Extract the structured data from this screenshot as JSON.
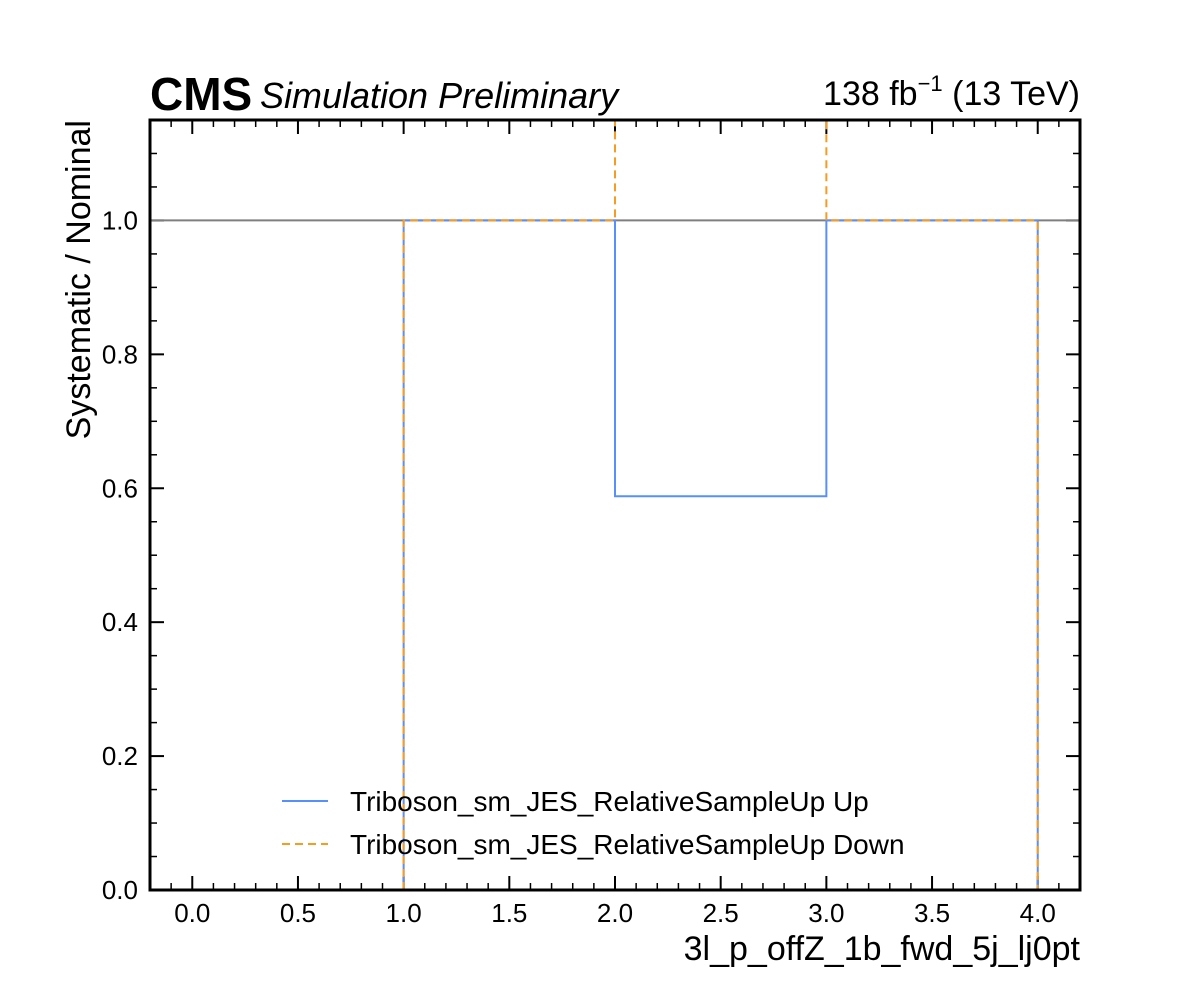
{
  "header": {
    "experiment": "CMS",
    "status": "Simulation Preliminary",
    "lumi_value": "138 fb",
    "lumi_exponent": "−1",
    "energy": " (13 TeV)"
  },
  "chart_data": {
    "type": "line",
    "xlabel": "3l_p_offZ_1b_fwd_5j_lj0pt",
    "ylabel": "Systematic / Nominal",
    "xlim": [
      -0.2,
      4.2
    ],
    "ylim": [
      0.0,
      1.15
    ],
    "xticks": [
      "0.0",
      "0.5",
      "1.0",
      "1.5",
      "2.0",
      "2.5",
      "3.0",
      "3.5",
      "4.0"
    ],
    "xtick_values": [
      0.0,
      0.5,
      1.0,
      1.5,
      2.0,
      2.5,
      3.0,
      3.5,
      4.0
    ],
    "yticks": [
      "0.0",
      "0.2",
      "0.4",
      "0.6",
      "0.8",
      "1.0"
    ],
    "ytick_values": [
      0.0,
      0.2,
      0.4,
      0.6,
      0.8,
      1.0
    ],
    "reference_line": 1.0,
    "legend_position": "lower-center",
    "series": [
      {
        "name": "Triboson_sm_JES_RelativeSampleUp Up",
        "style": "solid",
        "color": "#5790fc",
        "bin_edges": [
          1.0,
          2.0,
          3.0,
          4.0
        ],
        "values": [
          1.0,
          0.588,
          1.0
        ]
      },
      {
        "name": "Triboson_sm_JES_RelativeSampleUp Down",
        "style": "dashed",
        "color": "#f89c20",
        "bin_edges": [
          1.0,
          2.0,
          3.0,
          4.0
        ],
        "values": [
          1.0,
          null,
          1.0
        ]
      }
    ]
  }
}
